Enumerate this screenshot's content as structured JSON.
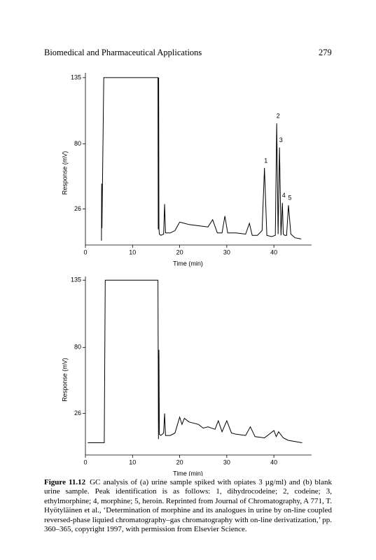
{
  "header": {
    "title": "Biomedical and Pharmaceutical Applications",
    "page_number": "279"
  },
  "chart_data": [
    {
      "type": "line",
      "color": "#000000",
      "ylabel": "Response (mV)",
      "xlabel": "Time (min)",
      "xlim": [
        0,
        48
      ],
      "xticks": [
        0,
        10,
        20,
        30,
        40
      ],
      "ylim": [
        -4,
        139
      ],
      "yticks": [
        26,
        80,
        135
      ],
      "x": [
        3.3,
        3.4,
        3.45,
        3.5,
        3.9,
        15.4,
        15.45,
        15.55,
        15.6,
        15.7,
        16.0,
        16.6,
        16.8,
        17.0,
        18.0,
        19.0,
        20.0,
        21.0,
        22.0,
        24.0,
        26.0,
        27.0,
        28.0,
        29.0,
        29.6,
        30.2,
        32.0,
        34.0,
        34.8,
        35.4,
        36.5,
        37.5,
        38.0,
        38.5,
        39.5,
        40.3,
        40.6,
        40.9,
        41.2,
        41.5,
        41.8,
        42.0,
        42.3,
        42.7,
        43.1,
        43.6,
        44.5,
        45.8
      ],
      "values": [
        0,
        0,
        47,
        10,
        135,
        135,
        9,
        135,
        10,
        5,
        4,
        5,
        30,
        6,
        6,
        8,
        15,
        14,
        13,
        12,
        11,
        17,
        6,
        6,
        20,
        6,
        6,
        5,
        14,
        4,
        4,
        8,
        60,
        4,
        3,
        4,
        97,
        5,
        77,
        4,
        31,
        5,
        4,
        4,
        29,
        5,
        2,
        1
      ],
      "annotations": [
        {
          "text": "1",
          "x": 38.0,
          "y": 60
        },
        {
          "text": "2",
          "x": 40.6,
          "y": 97
        },
        {
          "text": "3",
          "x": 41.2,
          "y": 77
        },
        {
          "text": "4",
          "x": 41.8,
          "y": 31
        },
        {
          "text": "5",
          "x": 43.1,
          "y": 29
        }
      ]
    },
    {
      "type": "line",
      "color": "#000000",
      "ylabel": "Response (mV)",
      "xlabel": "Time (min)",
      "xlim": [
        0,
        48
      ],
      "xticks": [
        0,
        10,
        20,
        30,
        40
      ],
      "ylim": [
        -8,
        138
      ],
      "yticks": [
        26,
        80,
        135
      ],
      "x": [
        0.5,
        4.0,
        4.2,
        15.4,
        15.5,
        15.6,
        15.7,
        16.0,
        16.6,
        16.8,
        17.0,
        18.0,
        19.0,
        20.0,
        20.5,
        21.0,
        22.0,
        24.0,
        25.0,
        26.0,
        27.5,
        28.2,
        29.0,
        30.0,
        31.0,
        32.0,
        34.0,
        35.0,
        36.0,
        38.0,
        40.0,
        40.5,
        41.0,
        42.0,
        43.0,
        46.0
      ],
      "values": [
        2,
        2,
        135,
        135,
        5,
        78,
        9,
        8,
        10,
        26,
        8,
        8,
        10,
        23,
        17,
        22,
        19,
        17,
        14,
        15,
        13,
        20,
        11,
        20,
        10,
        9,
        8,
        15,
        7,
        6,
        12,
        7,
        11,
        6,
        4,
        2
      ]
    }
  ],
  "caption": {
    "label": "Figure 11.12",
    "text": "GC analysis of (a) urine sample spiked with opiates 3 µg/ml) and (b) blank urine sample. Peak identification is as follows: 1, dihydrocodeine; 2, codeine; 3, ethylmorphine; 4, morphine; 5, heroin. Reprinted from Journal of Chromatography, A 771, T. Hyötyläinen et al., ‘Determination of morphine and its analogues in urine by on-line coupled reversed-phase liquied chromatography–gas chromatography with on-line derivatization,’ pp. 360–365, copyright 1997, with permission from Elsevier Science."
  }
}
